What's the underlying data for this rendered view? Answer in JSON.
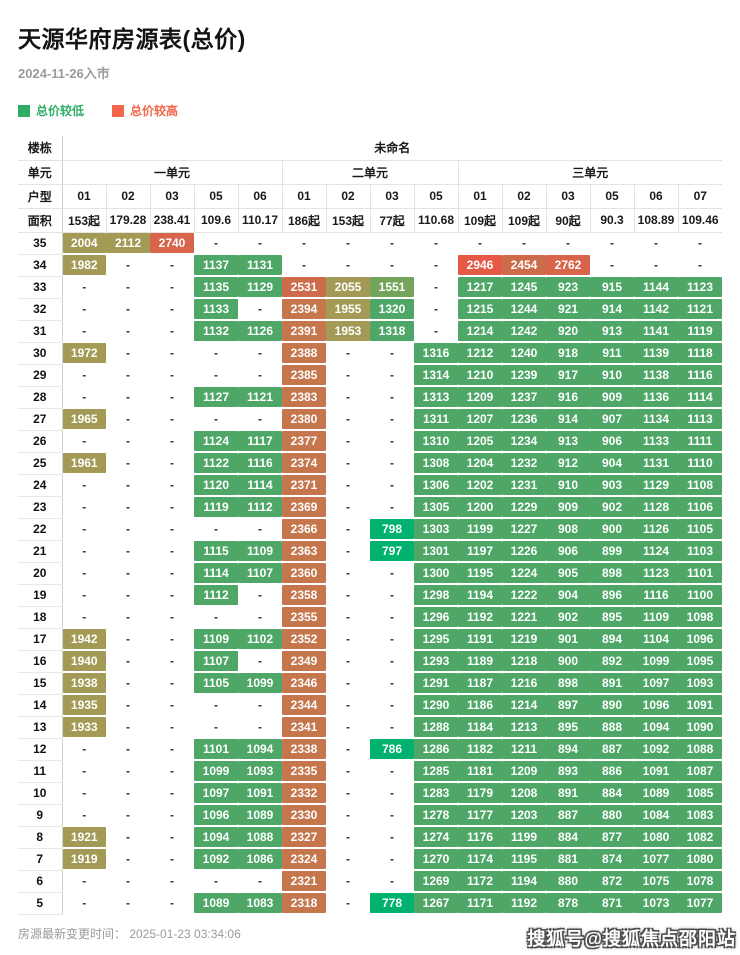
{
  "chart_data": {
    "type": "table",
    "title": "天源华府房源表(总价)",
    "subtitle": "2024-11-26入市",
    "legend": [
      {
        "label": "总价较低",
        "color": "#2fad68"
      },
      {
        "label": "总价较高",
        "color": "#f3664a"
      }
    ],
    "row_labels": {
      "building": "楼栋",
      "unit": "单元",
      "type": "户型",
      "area": "面积"
    },
    "building": "未命名",
    "units": [
      {
        "name": "一单元",
        "types": [
          "01",
          "02",
          "03",
          "05",
          "06"
        ],
        "areas": [
          "153起",
          "179.28",
          "238.41",
          "109.6",
          "110.17"
        ]
      },
      {
        "name": "二单元",
        "types": [
          "01",
          "02",
          "03",
          "05"
        ],
        "areas": [
          "186起",
          "153起",
          "77起",
          "110.68"
        ]
      },
      {
        "name": "三单元",
        "types": [
          "01",
          "02",
          "03",
          "05",
          "06",
          "07"
        ],
        "areas": [
          "109起",
          "109起",
          "90起",
          "90.3",
          "108.89",
          "109.46"
        ]
      }
    ],
    "color_scale": [
      {
        "max": 810,
        "color": "#00b26d"
      },
      {
        "max": 1345,
        "color": "#4ea767"
      },
      {
        "max": 1420,
        "color": "#57a563"
      },
      {
        "max": 1650,
        "color": "#73a45a"
      },
      {
        "max": 2160,
        "color": "#a29a55"
      },
      {
        "max": 2430,
        "color": "#c5764d"
      },
      {
        "max": 2600,
        "color": "#cc6c4a"
      },
      {
        "max": 2810,
        "color": "#d8644b"
      },
      {
        "max": 99999,
        "color": "#e55947"
      }
    ],
    "rows": [
      {
        "floor": "35",
        "values": [
          "2004",
          "2112",
          "2740",
          "-",
          "-",
          "-",
          "-",
          "-",
          "-",
          "-",
          "-",
          "-",
          "-",
          "-",
          "-"
        ]
      },
      {
        "floor": "34",
        "values": [
          "1982",
          "-",
          "-",
          "1137",
          "1131",
          "-",
          "-",
          "-",
          "-",
          "2946",
          "2454",
          "2762",
          "-",
          "-",
          "-"
        ]
      },
      {
        "floor": "33",
        "values": [
          "-",
          "-",
          "-",
          "1135",
          "1129",
          "2531",
          "2055",
          "1551",
          "-",
          "1217",
          "1245",
          "923",
          "915",
          "1144",
          "1123"
        ]
      },
      {
        "floor": "32",
        "values": [
          "-",
          "-",
          "-",
          "1133",
          "-",
          "2394",
          "1955",
          "1320",
          "-",
          "1215",
          "1244",
          "921",
          "914",
          "1142",
          "1121"
        ]
      },
      {
        "floor": "31",
        "values": [
          "-",
          "-",
          "-",
          "1132",
          "1126",
          "2391",
          "1953",
          "1318",
          "-",
          "1214",
          "1242",
          "920",
          "913",
          "1141",
          "1119"
        ]
      },
      {
        "floor": "30",
        "values": [
          "1972",
          "-",
          "-",
          "-",
          "-",
          "2388",
          "-",
          "-",
          "1316",
          "1212",
          "1240",
          "918",
          "911",
          "1139",
          "1118"
        ]
      },
      {
        "floor": "29",
        "values": [
          "-",
          "-",
          "-",
          "-",
          "-",
          "2385",
          "-",
          "-",
          "1314",
          "1210",
          "1239",
          "917",
          "910",
          "1138",
          "1116"
        ]
      },
      {
        "floor": "28",
        "values": [
          "-",
          "-",
          "-",
          "1127",
          "1121",
          "2383",
          "-",
          "-",
          "1313",
          "1209",
          "1237",
          "916",
          "909",
          "1136",
          "1114"
        ]
      },
      {
        "floor": "27",
        "values": [
          "1965",
          "-",
          "-",
          "-",
          "-",
          "2380",
          "-",
          "-",
          "1311",
          "1207",
          "1236",
          "914",
          "907",
          "1134",
          "1113"
        ]
      },
      {
        "floor": "26",
        "values": [
          "-",
          "-",
          "-",
          "1124",
          "1117",
          "2377",
          "-",
          "-",
          "1310",
          "1205",
          "1234",
          "913",
          "906",
          "1133",
          "1111"
        ]
      },
      {
        "floor": "25",
        "values": [
          "1961",
          "-",
          "-",
          "1122",
          "1116",
          "2374",
          "-",
          "-",
          "1308",
          "1204",
          "1232",
          "912",
          "904",
          "1131",
          "1110"
        ]
      },
      {
        "floor": "24",
        "values": [
          "-",
          "-",
          "-",
          "1120",
          "1114",
          "2371",
          "-",
          "-",
          "1306",
          "1202",
          "1231",
          "910",
          "903",
          "1129",
          "1108"
        ]
      },
      {
        "floor": "23",
        "values": [
          "-",
          "-",
          "-",
          "1119",
          "1112",
          "2369",
          "-",
          "-",
          "1305",
          "1200",
          "1229",
          "909",
          "902",
          "1128",
          "1106"
        ]
      },
      {
        "floor": "22",
        "values": [
          "-",
          "-",
          "-",
          "-",
          "-",
          "2366",
          "-",
          "798",
          "1303",
          "1199",
          "1227",
          "908",
          "900",
          "1126",
          "1105"
        ]
      },
      {
        "floor": "21",
        "values": [
          "-",
          "-",
          "-",
          "1115",
          "1109",
          "2363",
          "-",
          "797",
          "1301",
          "1197",
          "1226",
          "906",
          "899",
          "1124",
          "1103"
        ]
      },
      {
        "floor": "20",
        "values": [
          "-",
          "-",
          "-",
          "1114",
          "1107",
          "2360",
          "-",
          "-",
          "1300",
          "1195",
          "1224",
          "905",
          "898",
          "1123",
          "1101"
        ]
      },
      {
        "floor": "19",
        "values": [
          "-",
          "-",
          "-",
          "1112",
          "-",
          "2358",
          "-",
          "-",
          "1298",
          "1194",
          "1222",
          "904",
          "896",
          "1116",
          "1100"
        ]
      },
      {
        "floor": "18",
        "values": [
          "-",
          "-",
          "-",
          "-",
          "-",
          "2355",
          "-",
          "-",
          "1296",
          "1192",
          "1221",
          "902",
          "895",
          "1109",
          "1098"
        ]
      },
      {
        "floor": "17",
        "values": [
          "1942",
          "-",
          "-",
          "1109",
          "1102",
          "2352",
          "-",
          "-",
          "1295",
          "1191",
          "1219",
          "901",
          "894",
          "1104",
          "1096"
        ]
      },
      {
        "floor": "16",
        "values": [
          "1940",
          "-",
          "-",
          "1107",
          "-",
          "2349",
          "-",
          "-",
          "1293",
          "1189",
          "1218",
          "900",
          "892",
          "1099",
          "1095"
        ]
      },
      {
        "floor": "15",
        "values": [
          "1938",
          "-",
          "-",
          "1105",
          "1099",
          "2346",
          "-",
          "-",
          "1291",
          "1187",
          "1216",
          "898",
          "891",
          "1097",
          "1093"
        ]
      },
      {
        "floor": "14",
        "values": [
          "1935",
          "-",
          "-",
          "-",
          "-",
          "2344",
          "-",
          "-",
          "1290",
          "1186",
          "1214",
          "897",
          "890",
          "1096",
          "1091"
        ]
      },
      {
        "floor": "13",
        "values": [
          "1933",
          "-",
          "-",
          "-",
          "-",
          "2341",
          "-",
          "-",
          "1288",
          "1184",
          "1213",
          "895",
          "888",
          "1094",
          "1090"
        ]
      },
      {
        "floor": "12",
        "values": [
          "-",
          "-",
          "-",
          "1101",
          "1094",
          "2338",
          "-",
          "786",
          "1286",
          "1182",
          "1211",
          "894",
          "887",
          "1092",
          "1088"
        ]
      },
      {
        "floor": "11",
        "values": [
          "-",
          "-",
          "-",
          "1099",
          "1093",
          "2335",
          "-",
          "-",
          "1285",
          "1181",
          "1209",
          "893",
          "886",
          "1091",
          "1087"
        ]
      },
      {
        "floor": "10",
        "values": [
          "-",
          "-",
          "-",
          "1097",
          "1091",
          "2332",
          "-",
          "-",
          "1283",
          "1179",
          "1208",
          "891",
          "884",
          "1089",
          "1085"
        ]
      },
      {
        "floor": "9",
        "values": [
          "-",
          "-",
          "-",
          "1096",
          "1089",
          "2330",
          "-",
          "-",
          "1278",
          "1177",
          "1203",
          "887",
          "880",
          "1084",
          "1083"
        ]
      },
      {
        "floor": "8",
        "values": [
          "1921",
          "-",
          "-",
          "1094",
          "1088",
          "2327",
          "-",
          "-",
          "1274",
          "1176",
          "1199",
          "884",
          "877",
          "1080",
          "1082"
        ]
      },
      {
        "floor": "7",
        "values": [
          "1919",
          "-",
          "-",
          "1092",
          "1086",
          "2324",
          "-",
          "-",
          "1270",
          "1174",
          "1195",
          "881",
          "874",
          "1077",
          "1080"
        ]
      },
      {
        "floor": "6",
        "values": [
          "-",
          "-",
          "-",
          "-",
          "-",
          "2321",
          "-",
          "-",
          "1269",
          "1172",
          "1194",
          "880",
          "872",
          "1075",
          "1078"
        ]
      },
      {
        "floor": "5",
        "values": [
          "-",
          "-",
          "-",
          "1089",
          "1083",
          "2318",
          "-",
          "778",
          "1267",
          "1171",
          "1192",
          "878",
          "871",
          "1073",
          "1077"
        ]
      }
    ],
    "footer": "房源最新变更时间： 2025-01-23 03:34:06",
    "watermark": "搜狐号@搜狐焦点邵阳站"
  }
}
